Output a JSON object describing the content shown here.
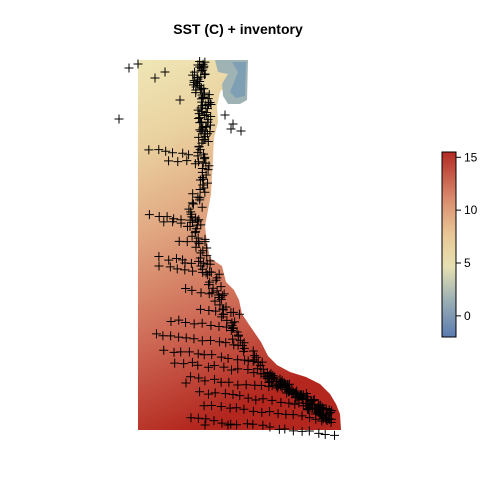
{
  "title": "SST (C) + inventory",
  "colors": {
    "scale": [
      "#5b7bb0",
      "#8fa8b8",
      "#c4c9b0",
      "#efe3b0",
      "#e9c896",
      "#dc9a78",
      "#c95a4a",
      "#b22a24"
    ],
    "marker": "#000000"
  },
  "colorbar": {
    "min": -2,
    "max": 15.5,
    "ticks": [
      {
        "value": 0,
        "label": "0"
      },
      {
        "value": 5,
        "label": "5"
      },
      {
        "value": 10,
        "label": "10"
      },
      {
        "value": 15,
        "label": "15"
      }
    ]
  },
  "marker_symbol": "+"
}
